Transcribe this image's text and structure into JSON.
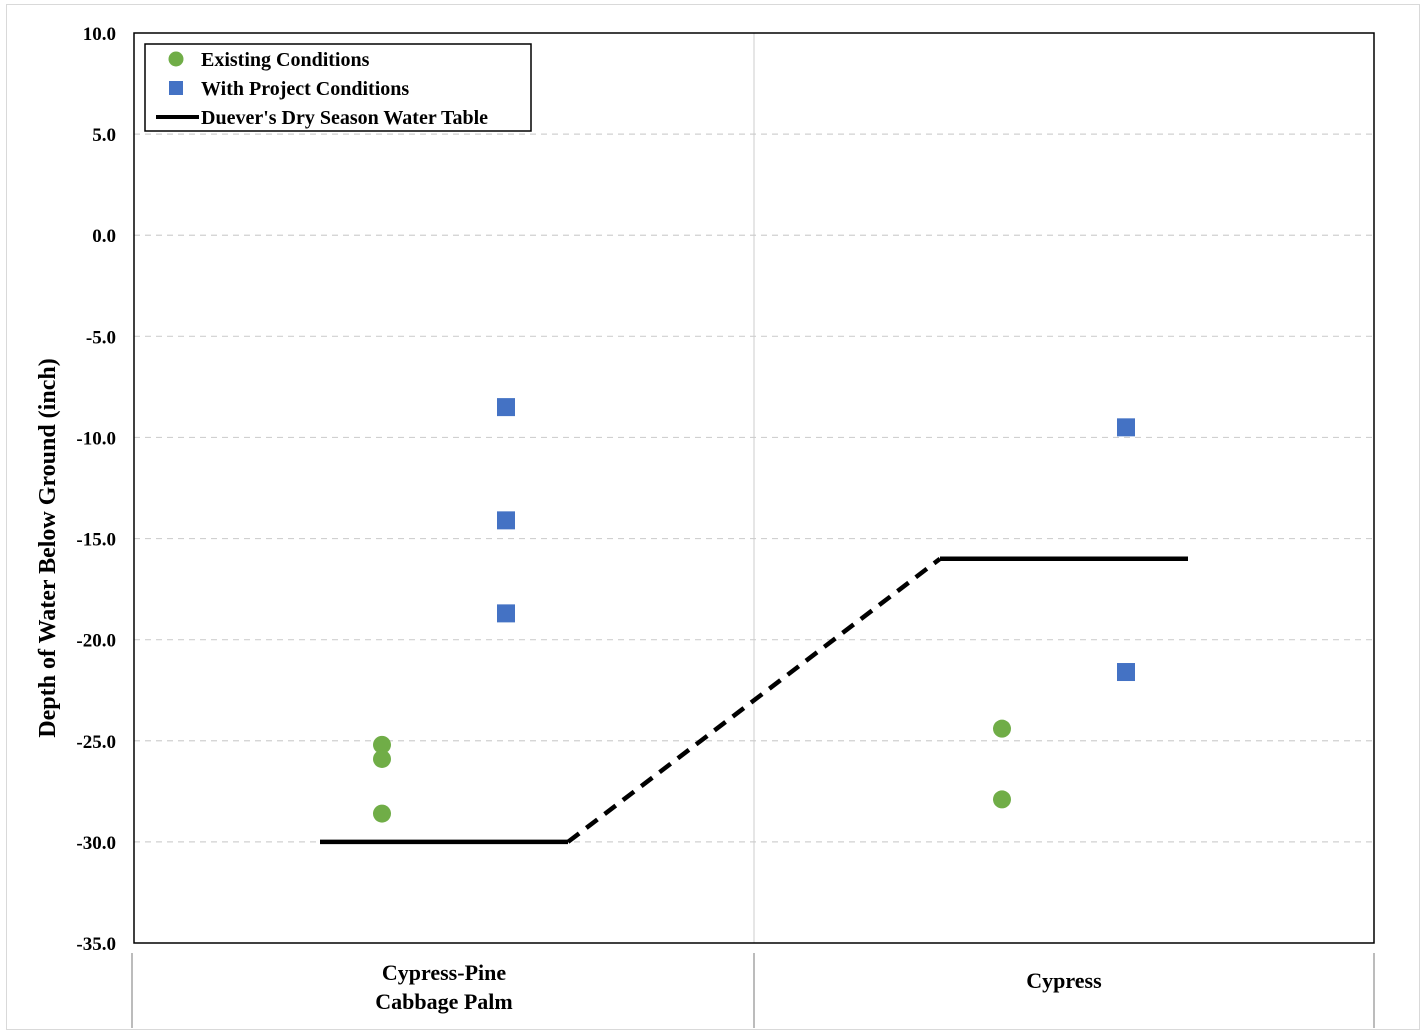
{
  "chart_data": {
    "type": "scatter",
    "ylabel": "Depth of Water Below Ground (inch)",
    "ylim": [
      -35,
      10
    ],
    "yticks": [
      "10.0",
      "5.0",
      "0.0",
      "-5.0",
      "-10.0",
      "-15.0",
      "-20.0",
      "-25.0",
      "-30.0",
      "-35.0"
    ],
    "yticks_values": [
      10,
      5,
      0,
      -5,
      -10,
      -15,
      -20,
      -25,
      -30,
      -35
    ],
    "categories": [
      {
        "lines": [
          "Cypress-Pine",
          "Cabbage Palm"
        ]
      },
      {
        "lines": [
          "Cypress"
        ]
      }
    ],
    "grid": "horizontal dashed",
    "legend_position": "top-left",
    "series": [
      {
        "name": "Existing Conditions",
        "marker": "circle",
        "color": "#70ad47",
        "points": [
          {
            "category": 0,
            "offset": 0.4,
            "y": -25.2
          },
          {
            "category": 0,
            "offset": 0.4,
            "y": -25.9
          },
          {
            "category": 0,
            "offset": 0.4,
            "y": -28.6
          },
          {
            "category": 1,
            "offset": 0.4,
            "y": -24.4
          },
          {
            "category": 1,
            "offset": 0.4,
            "y": -27.9
          }
        ]
      },
      {
        "name": "With Project Conditions",
        "marker": "square",
        "color": "#4472c4",
        "points": [
          {
            "category": 0,
            "offset": 0.6,
            "y": -8.5
          },
          {
            "category": 0,
            "offset": 0.6,
            "y": -14.1
          },
          {
            "category": 0,
            "offset": 0.6,
            "y": -18.7
          },
          {
            "category": 1,
            "offset": 0.6,
            "y": -9.5
          },
          {
            "category": 1,
            "offset": 0.6,
            "y": -21.6
          }
        ]
      },
      {
        "name": "Duever's Dry Season Water Table",
        "marker": "line",
        "color": "#000000",
        "segments": [
          {
            "style": "solid",
            "from": {
              "category": 0,
              "offset": 0.3,
              "y": -30
            },
            "to": {
              "category": 0,
              "offset": 0.7,
              "y": -30
            }
          },
          {
            "style": "dashed",
            "from": {
              "category": 0,
              "offset": 0.7,
              "y": -30
            },
            "to": {
              "category": 1,
              "offset": 0.3,
              "y": -16
            }
          },
          {
            "style": "solid",
            "from": {
              "category": 1,
              "offset": 0.3,
              "y": -16
            },
            "to": {
              "category": 1,
              "offset": 0.7,
              "y": -16
            }
          }
        ]
      }
    ]
  }
}
